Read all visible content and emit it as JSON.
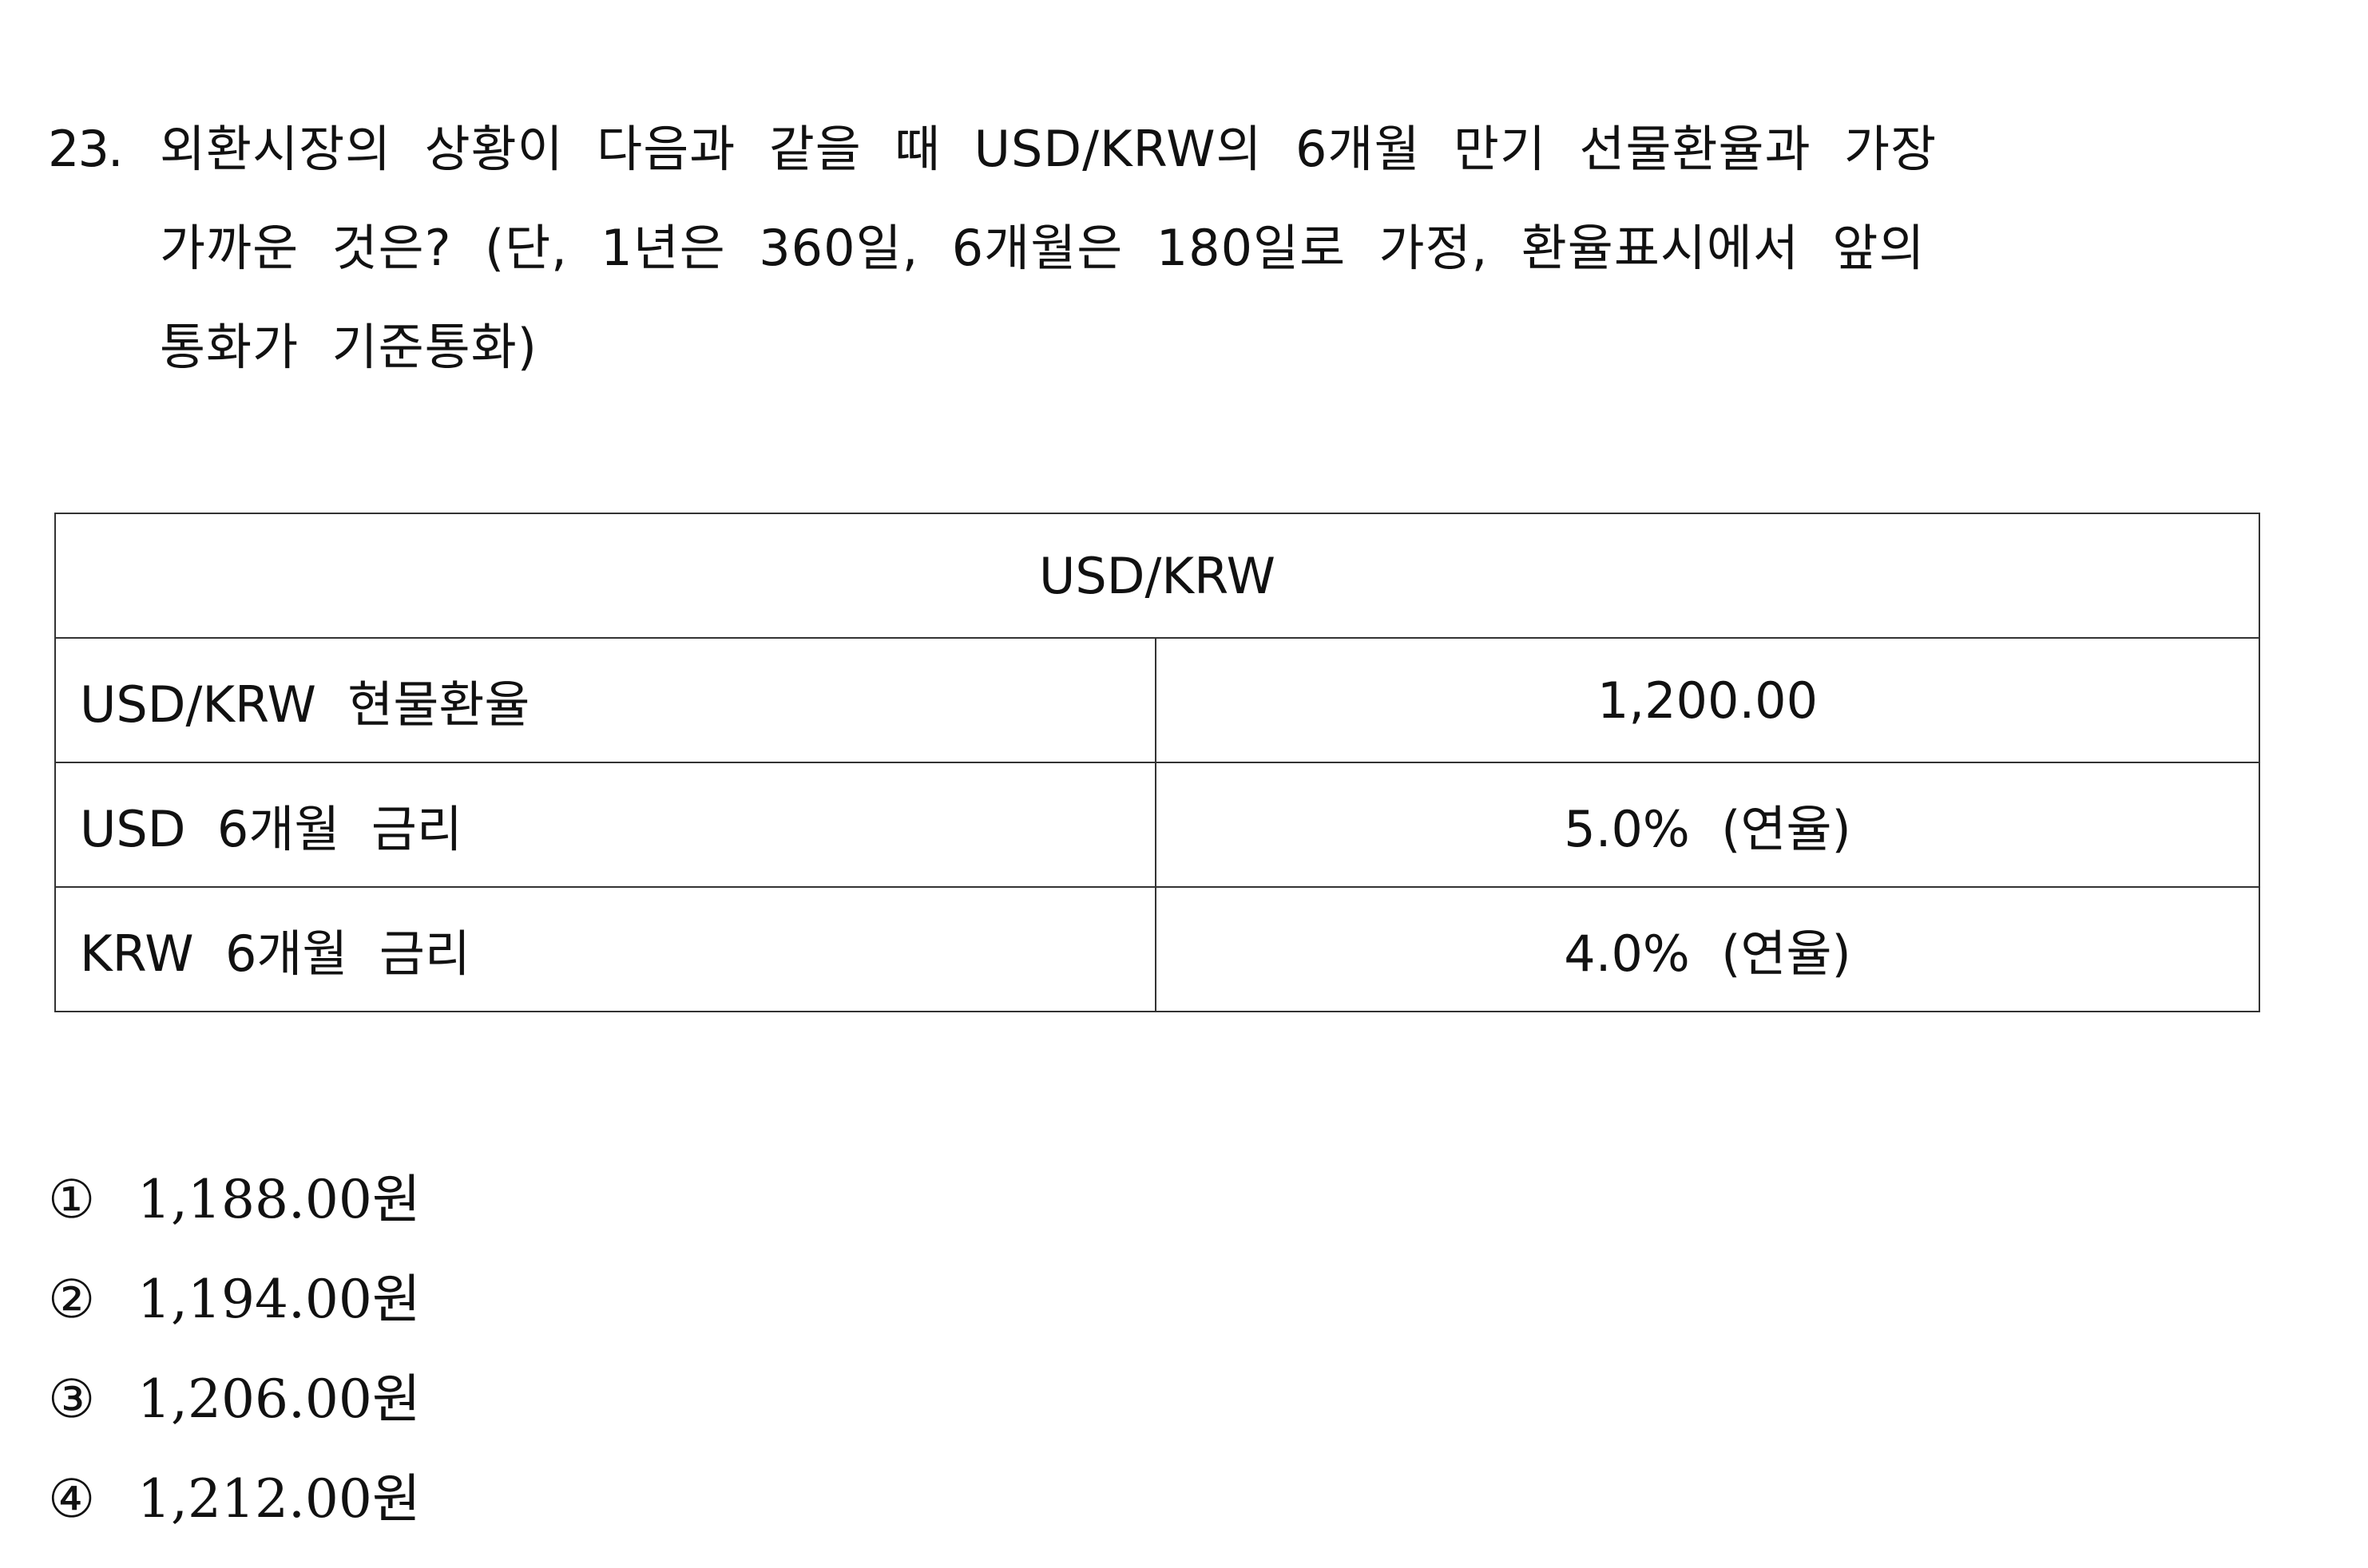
{
  "question": {
    "number": "23.",
    "lines": [
      "외환시장의  상황이  다음과  같을  때  USD/KRW의  6개월  만기  선물환율과  가장",
      "가까운  것은?  (단,  1년은  360일,  6개월은  180일로  가정,  환율표시에서  앞의",
      "통화가  기준통화)"
    ]
  },
  "table": {
    "header": "USD/KRW",
    "rows": [
      {
        "label": "USD/KRW  현물환율",
        "value": "1,200.00"
      },
      {
        "label": "USD  6개월  금리",
        "value": "5.0%  (연율)"
      },
      {
        "label": "KRW  6개월  금리",
        "value": "4.0%  (연율)"
      }
    ]
  },
  "choices": [
    {
      "number": "①",
      "text": "1,188.00원"
    },
    {
      "number": "②",
      "text": "1,194.00원"
    },
    {
      "number": "③",
      "text": "1,206.00원"
    },
    {
      "number": "④",
      "text": "1,212.00원"
    }
  ]
}
